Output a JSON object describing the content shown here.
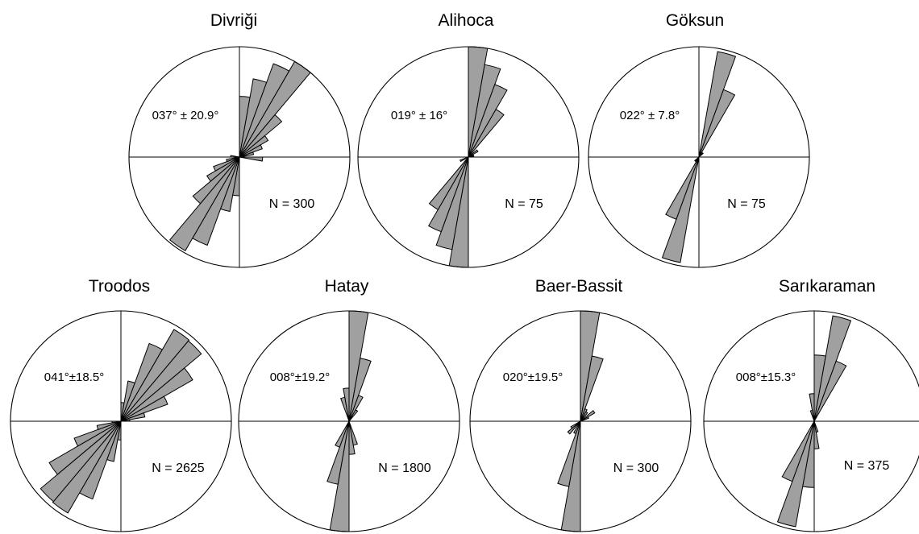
{
  "chart_data": [
    {
      "type": "rose",
      "title": "Divriği",
      "mean_label": "037° ± 20.9°",
      "n_label": "N = 300",
      "bin_width_deg": 10,
      "bins": [
        {
          "az": 5,
          "r": 0.55
        },
        {
          "az": 15,
          "r": 0.72
        },
        {
          "az": 25,
          "r": 0.9
        },
        {
          "az": 35,
          "r": 1.0
        },
        {
          "az": 45,
          "r": 0.5
        },
        {
          "az": 55,
          "r": 0.3
        },
        {
          "az": 65,
          "r": 0.22
        },
        {
          "az": 75,
          "r": 0.13
        },
        {
          "az": 95,
          "r": 0.21
        },
        {
          "az": 185,
          "r": 0.35
        },
        {
          "az": 195,
          "r": 0.5
        },
        {
          "az": 205,
          "r": 0.85
        },
        {
          "az": 215,
          "r": 0.98
        },
        {
          "az": 225,
          "r": 0.55
        },
        {
          "az": 235,
          "r": 0.34
        },
        {
          "az": 245,
          "r": 0.25
        },
        {
          "az": 255,
          "r": 0.12
        },
        {
          "az": 275,
          "r": 0.08
        }
      ]
    },
    {
      "type": "rose",
      "title": "Alihoca",
      "mean_label": "019° ± 16°",
      "n_label": "N = 75",
      "bin_width_deg": 10,
      "bins": [
        {
          "az": 5,
          "r": 1.0
        },
        {
          "az": 15,
          "r": 0.85
        },
        {
          "az": 25,
          "r": 0.7
        },
        {
          "az": 35,
          "r": 0.5
        },
        {
          "az": 55,
          "r": 0.1
        },
        {
          "az": 75,
          "r": 0.05
        },
        {
          "az": 185,
          "r": 1.0
        },
        {
          "az": 195,
          "r": 0.85
        },
        {
          "az": 205,
          "r": 0.72
        },
        {
          "az": 215,
          "r": 0.55
        },
        {
          "az": 245,
          "r": 0.08
        }
      ]
    },
    {
      "type": "rose",
      "title": "Göksun",
      "mean_label": "022° ± 7.8°",
      "n_label": "N = 75",
      "bin_width_deg": 10,
      "bins": [
        {
          "az": 15,
          "r": 0.97
        },
        {
          "az": 25,
          "r": 0.65
        },
        {
          "az": 45,
          "r": 0.05
        },
        {
          "az": 195,
          "r": 0.97
        },
        {
          "az": 205,
          "r": 0.6
        },
        {
          "az": 225,
          "r": 0.05
        }
      ]
    },
    {
      "type": "rose",
      "title": "Troodos",
      "mean_label": "041°±18.5°",
      "n_label": "N = 2625",
      "bin_width_deg": 10,
      "bins": [
        {
          "az": 5,
          "r": 0.17
        },
        {
          "az": 15,
          "r": 0.37
        },
        {
          "az": 25,
          "r": 0.75
        },
        {
          "az": 35,
          "r": 0.96
        },
        {
          "az": 45,
          "r": 0.95
        },
        {
          "az": 55,
          "r": 0.75
        },
        {
          "az": 65,
          "r": 0.45
        },
        {
          "az": 75,
          "r": 0.22
        },
        {
          "az": 85,
          "r": 0.08
        },
        {
          "az": 185,
          "r": 0.17
        },
        {
          "az": 195,
          "r": 0.37
        },
        {
          "az": 205,
          "r": 0.75
        },
        {
          "az": 215,
          "r": 0.96
        },
        {
          "az": 225,
          "r": 0.95
        },
        {
          "az": 235,
          "r": 0.75
        },
        {
          "az": 245,
          "r": 0.45
        },
        {
          "az": 255,
          "r": 0.22
        },
        {
          "az": 265,
          "r": 0.08
        }
      ]
    },
    {
      "type": "rose",
      "title": "Hatay",
      "mean_label": "008°±19.2°",
      "n_label": "N = 1800",
      "bin_width_deg": 10,
      "bins": [
        {
          "az": 5,
          "r": 1.0
        },
        {
          "az": 15,
          "r": 0.58
        },
        {
          "az": 25,
          "r": 0.25
        },
        {
          "az": 35,
          "r": 0.12
        },
        {
          "az": 345,
          "r": 0.22
        },
        {
          "az": 355,
          "r": 0.3
        },
        {
          "az": 185,
          "r": 1.0
        },
        {
          "az": 195,
          "r": 0.58
        },
        {
          "az": 205,
          "r": 0.25
        },
        {
          "az": 165,
          "r": 0.22
        },
        {
          "az": 175,
          "r": 0.3
        }
      ]
    },
    {
      "type": "rose",
      "title": "Baer-Bassit",
      "mean_label": "020°±19.5°",
      "n_label": "N = 300",
      "bin_width_deg": 10,
      "bins": [
        {
          "az": 5,
          "r": 1.0
        },
        {
          "az": 15,
          "r": 0.6
        },
        {
          "az": 25,
          "r": 0.12
        },
        {
          "az": 35,
          "r": 0.1
        },
        {
          "az": 55,
          "r": 0.15
        },
        {
          "az": 65,
          "r": 0.08
        },
        {
          "az": 185,
          "r": 1.0
        },
        {
          "az": 195,
          "r": 0.6
        },
        {
          "az": 205,
          "r": 0.12
        },
        {
          "az": 225,
          "r": 0.15
        },
        {
          "az": 235,
          "r": 0.1
        }
      ]
    },
    {
      "type": "rose",
      "title": "Sarıkaraman",
      "mean_label": "008°±15.3°",
      "n_label": "N = 375",
      "bin_width_deg": 10,
      "bins": [
        {
          "az": 5,
          "r": 0.6
        },
        {
          "az": 15,
          "r": 0.97
        },
        {
          "az": 25,
          "r": 0.58
        },
        {
          "az": 355,
          "r": 0.25
        },
        {
          "az": 345,
          "r": 0.1
        },
        {
          "az": 185,
          "r": 0.6
        },
        {
          "az": 195,
          "r": 0.97
        },
        {
          "az": 205,
          "r": 0.58
        },
        {
          "az": 175,
          "r": 0.25
        },
        {
          "az": 165,
          "r": 0.1
        }
      ]
    }
  ],
  "colors": {
    "wedge_fill": "#a0a0a0",
    "stroke": "#000000",
    "background": "#ffffff"
  }
}
